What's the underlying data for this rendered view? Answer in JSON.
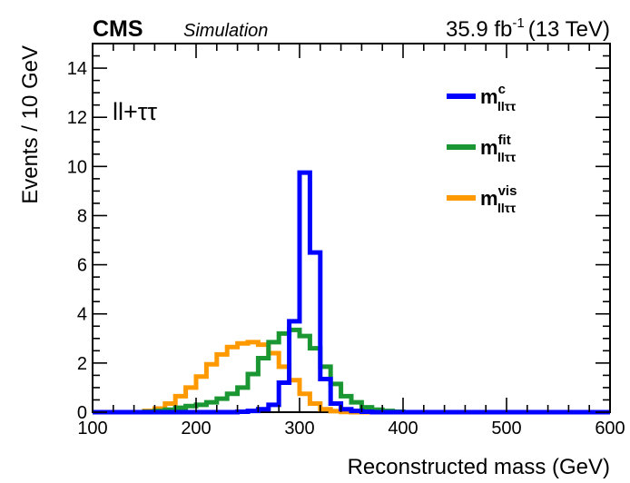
{
  "header": {
    "experiment": "CMS",
    "tag": "Simulation",
    "luminosity_value": "35.9 fb",
    "luminosity_exponent": "-1",
    "energy": "(13 TeV)"
  },
  "channel_label": "ll+ττ",
  "colors": {
    "c": "#0000ff",
    "fit": "#1a9633",
    "vis": "#ff9900",
    "axis": "#000000",
    "background": "#ffffff"
  },
  "chart_data": {
    "type": "area",
    "histogram_style": "step",
    "title": "",
    "xlabel": "Reconstructed mass (GeV)",
    "ylabel": "Events / 10 GeV",
    "xlim": [
      100,
      600
    ],
    "ylim": [
      0,
      15
    ],
    "bin_width": 10,
    "x_ticks": [
      100,
      200,
      300,
      400,
      500,
      600
    ],
    "y_ticks": [
      0,
      2,
      4,
      6,
      8,
      10,
      12,
      14
    ],
    "grid": false,
    "legend_position": "top-right",
    "bin_edges": [
      100,
      110,
      120,
      130,
      140,
      150,
      160,
      170,
      180,
      190,
      200,
      210,
      220,
      230,
      240,
      250,
      260,
      270,
      280,
      290,
      300,
      310,
      320,
      330,
      340,
      350,
      360,
      370,
      380,
      390,
      400,
      410,
      420,
      430,
      440,
      450,
      460,
      470,
      480,
      490,
      500,
      510,
      520,
      530,
      540,
      550,
      560,
      570,
      580,
      590,
      600
    ],
    "series": [
      {
        "key": "c",
        "name": "m",
        "sup": "c",
        "sub": "llττ",
        "color": "#0000ff",
        "values": [
          0,
          0,
          0,
          0,
          0,
          0,
          0,
          0,
          0,
          0,
          0,
          0,
          0,
          0,
          0.02,
          0.05,
          0.12,
          0.3,
          1.2,
          3.7,
          9.75,
          6.5,
          1.35,
          0.35,
          0.12,
          0.05,
          0.02,
          0,
          0,
          0,
          0,
          0,
          0,
          0,
          0,
          0,
          0,
          0,
          0,
          0,
          0,
          0,
          0,
          0,
          0,
          0,
          0,
          0,
          0,
          0
        ]
      },
      {
        "key": "fit",
        "name": "m",
        "sup": "fit",
        "sub": "llττ",
        "color": "#1a9633",
        "values": [
          0,
          0,
          0,
          0,
          0,
          0.02,
          0.05,
          0.1,
          0.18,
          0.25,
          0.3,
          0.4,
          0.55,
          0.75,
          1.0,
          1.55,
          2.2,
          2.85,
          3.2,
          3.35,
          3.1,
          2.6,
          1.85,
          1.15,
          0.65,
          0.4,
          0.2,
          0.1,
          0.05,
          0.02,
          0,
          0,
          0,
          0,
          0,
          0,
          0,
          0,
          0,
          0,
          0,
          0,
          0,
          0,
          0,
          0,
          0,
          0,
          0,
          0
        ]
      },
      {
        "key": "vis",
        "name": "m",
        "sup": "vis",
        "sub": "llττ",
        "color": "#ff9900",
        "values": [
          0,
          0,
          0,
          0,
          0,
          0.05,
          0.15,
          0.35,
          0.65,
          1.0,
          1.45,
          1.95,
          2.35,
          2.65,
          2.8,
          2.85,
          2.75,
          2.4,
          1.85,
          1.3,
          0.75,
          0.35,
          0.12,
          0.04,
          0.01,
          0,
          0,
          0,
          0,
          0,
          0,
          0,
          0,
          0,
          0,
          0,
          0,
          0,
          0,
          0,
          0,
          0,
          0,
          0,
          0,
          0,
          0,
          0,
          0,
          0
        ]
      }
    ]
  }
}
